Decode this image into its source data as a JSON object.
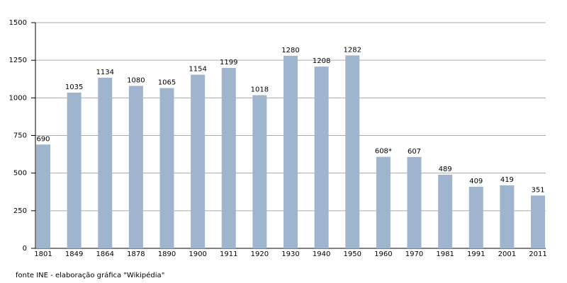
{
  "chart_data": {
    "type": "bar",
    "categories": [
      "1801",
      "1849",
      "1864",
      "1878",
      "1890",
      "1900",
      "1911",
      "1920",
      "1930",
      "1940",
      "1950",
      "1960",
      "1970",
      "1981",
      "1991",
      "2001",
      "2011"
    ],
    "values": [
      690,
      1035,
      1134,
      1080,
      1065,
      1154,
      1199,
      1018,
      1280,
      1208,
      1282,
      608,
      607,
      489,
      409,
      419,
      351
    ],
    "value_labels": [
      "690",
      "1035",
      "1134",
      "1080",
      "1065",
      "1154",
      "1199",
      "1018",
      "1280",
      "1208",
      "1282",
      "608*",
      "607",
      "489",
      "409",
      "419",
      "351"
    ],
    "color": "#9fb4cd",
    "ylim": [
      0,
      1500
    ],
    "yticks": [
      0,
      250,
      500,
      750,
      1000,
      1250,
      1500
    ],
    "grid": true,
    "source": "fonte INE - elaboração gráfica \"Wikipédia\""
  }
}
